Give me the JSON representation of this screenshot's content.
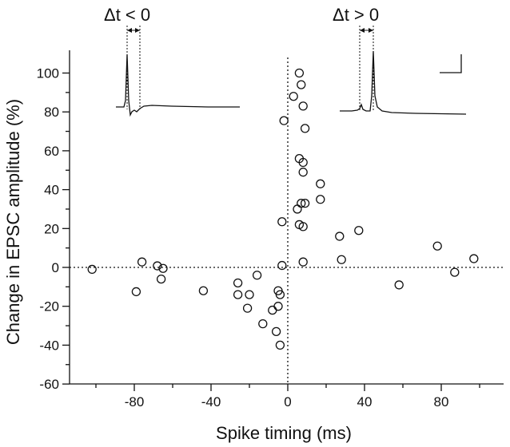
{
  "chart_data": {
    "type": "scatter",
    "xlabel": "Spike timing (ms)",
    "ylabel": "Change in EPSC amplitude (%)",
    "xlim": [
      -105,
      115
    ],
    "ylim": [
      -60,
      110
    ],
    "x_ticks": [
      -80,
      -40,
      0,
      40,
      80
    ],
    "y_ticks": [
      -60,
      -40,
      -20,
      0,
      20,
      40,
      60,
      80,
      100
    ],
    "reference_lines": {
      "y": 0,
      "x": 0,
      "style": "dotted"
    },
    "marker": "open-circle",
    "points": [
      [
        -102,
        -1
      ],
      [
        -79,
        -12.5
      ],
      [
        -76,
        2.8
      ],
      [
        -68,
        0.8
      ],
      [
        -66,
        -6
      ],
      [
        -65,
        -0.5
      ],
      [
        -44,
        -12
      ],
      [
        -26,
        -8
      ],
      [
        -26,
        -14
      ],
      [
        -21,
        -21
      ],
      [
        -20,
        -14
      ],
      [
        -16,
        -4
      ],
      [
        -13,
        -29
      ],
      [
        -8,
        -22
      ],
      [
        -6,
        -33
      ],
      [
        -5,
        -12
      ],
      [
        -5,
        -20
      ],
      [
        -4,
        -40
      ],
      [
        -4,
        -14
      ],
      [
        -3,
        1
      ],
      [
        -3,
        23.5
      ],
      [
        -2,
        75.5
      ],
      [
        3,
        88
      ],
      [
        5,
        30
      ],
      [
        6,
        100
      ],
      [
        6,
        22
      ],
      [
        6,
        56
      ],
      [
        7,
        94
      ],
      [
        7,
        33
      ],
      [
        8,
        54
      ],
      [
        8,
        49
      ],
      [
        8,
        83
      ],
      [
        8,
        21
      ],
      [
        8,
        2.8
      ],
      [
        9,
        71.5
      ],
      [
        9,
        33
      ],
      [
        17,
        43
      ],
      [
        17,
        35
      ],
      [
        27,
        16
      ],
      [
        28,
        4
      ],
      [
        37,
        19
      ],
      [
        58,
        -9
      ],
      [
        78,
        11
      ],
      [
        87,
        -2.5
      ],
      [
        97,
        4.5
      ]
    ],
    "annotations": [
      {
        "text": "Δt < 0",
        "position": "top-left"
      },
      {
        "text": "Δt > 0",
        "position": "top-center"
      }
    ]
  },
  "colors": {
    "ink": "#111111",
    "background": "#ffffff"
  }
}
